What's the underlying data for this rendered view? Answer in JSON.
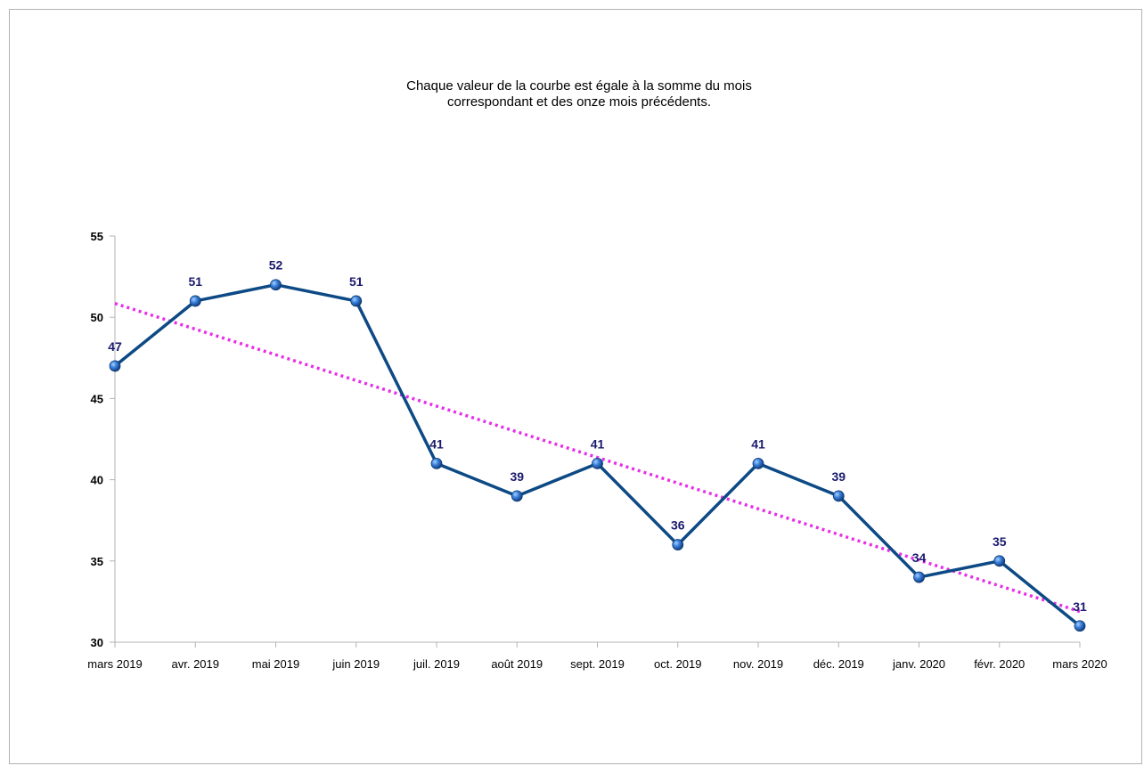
{
  "chart_data": {
    "type": "line",
    "title": "Chaque valeur de la courbe est égale à la somme du mois\ncorrespondant et des onze mois précédents.",
    "xlabel": "",
    "ylabel": "",
    "categories": [
      "mars 2019",
      "avr. 2019",
      "mai 2019",
      "juin 2019",
      "juil. 2019",
      "août 2019",
      "sept. 2019",
      "oct. 2019",
      "nov. 2019",
      "déc. 2019",
      "janv. 2020",
      "févr. 2020",
      "mars 2020"
    ],
    "series": [
      {
        "values": [
          47,
          51,
          52,
          51,
          41,
          39,
          41,
          36,
          41,
          39,
          34,
          35,
          31
        ],
        "color": "#0d4a85",
        "marker_color": "#2f78d4",
        "data_labels": true
      },
      {
        "trendline": "linear",
        "color": "#e82ee8",
        "style": "dotted",
        "values": [
          50.85,
          49.27,
          47.69,
          46.11,
          44.53,
          42.95,
          41.37,
          39.79,
          38.21,
          36.63,
          35.05,
          33.47,
          31.89
        ]
      }
    ],
    "ylim": [
      30,
      55
    ],
    "yticks": [
      30,
      35,
      40,
      45,
      50,
      55
    ],
    "grid": false,
    "legend": "none",
    "label_color": "#1a1a6e",
    "axis_color": "#b3b3b3"
  }
}
